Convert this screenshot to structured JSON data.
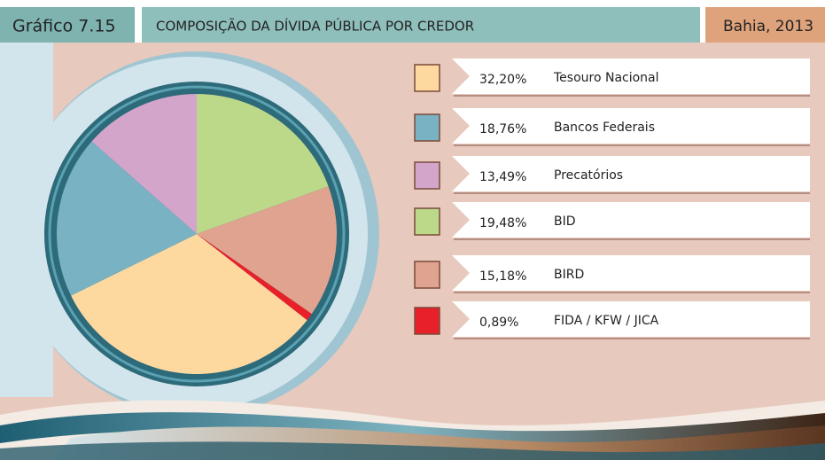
{
  "chart_data": {
    "type": "pie",
    "figure_label": "Gráfico 7.15",
    "title": "COMPOSIÇÃO DA DÍVIDA PÚBLICA POR CREDOR",
    "subtitle": "Bahia, 2013",
    "categories": [
      "Tesouro Nacional",
      "Bancos Federais",
      "Precatórios",
      "BID",
      "BIRD",
      "FIDA / KFW / JICA"
    ],
    "values": [
      32.2,
      18.76,
      13.49,
      19.48,
      15.18,
      0.89
    ],
    "value_labels": [
      "32,20%",
      "18,76%",
      "13,49%",
      "19,48%",
      "15,18%",
      "0,89%"
    ],
    "colors": [
      "#fdd89f",
      "#79b2c2",
      "#d3a5cb",
      "#bcd98a",
      "#e0a38f",
      "#e8202a"
    ]
  }
}
